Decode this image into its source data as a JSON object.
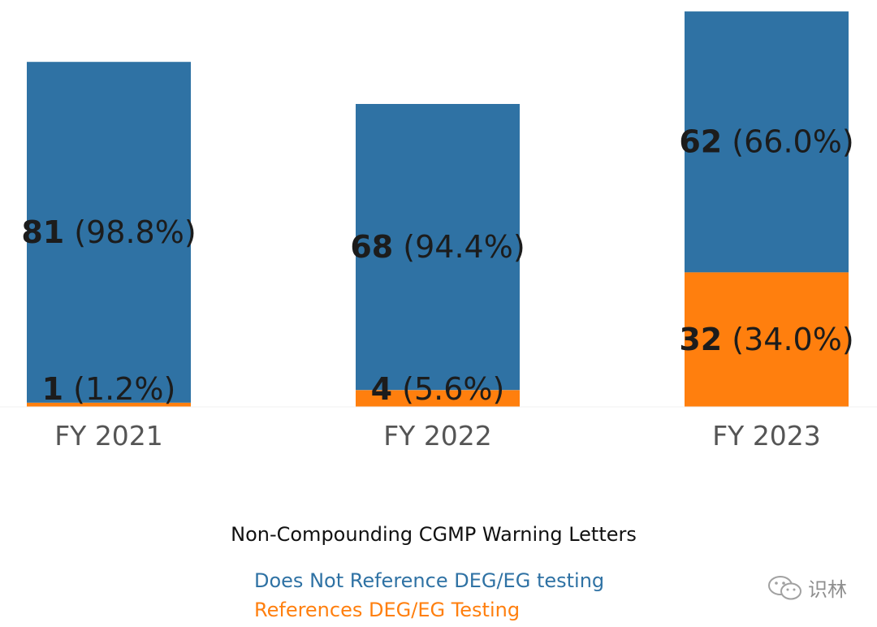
{
  "chart_data": {
    "type": "bar",
    "stacked": true,
    "title": "Non-Compounding CGMP Warning Letters",
    "categories": [
      "FY 2021",
      "FY 2022",
      "FY 2023"
    ],
    "series": [
      {
        "name": "References DEG/EG Testing",
        "color": "#ff7f0e",
        "values": [
          1,
          4,
          32
        ],
        "labels": [
          "(1.2%)",
          "(5.6%)",
          "(34.0%)"
        ]
      },
      {
        "name": "Does Not Reference DEG/EG testing",
        "color": "#2f72a4",
        "values": [
          81,
          68,
          62
        ],
        "labels": [
          "(98.8%)",
          "(94.4%)",
          "(66.0%)"
        ]
      }
    ],
    "legend_position": "bottom",
    "grid": false
  },
  "legend_order": [
    1,
    0
  ],
  "watermark": {
    "text": "识林",
    "icon": "wechat-icon"
  }
}
